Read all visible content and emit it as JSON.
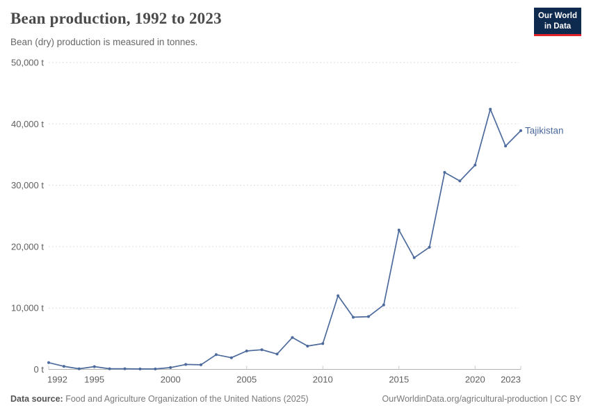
{
  "header": {
    "title": "Bean production, 1992 to 2023",
    "subtitle": "Bean (dry) production is measured in tonnes.",
    "logo": {
      "line1": "Our World",
      "line2": "in Data"
    }
  },
  "chart_data": {
    "type": "line",
    "title": "Bean production, 1992 to 2023",
    "unit": "t",
    "x": [
      1992,
      1993,
      1994,
      1995,
      1996,
      1997,
      1998,
      1999,
      2000,
      2001,
      2002,
      2003,
      2004,
      2005,
      2006,
      2007,
      2008,
      2009,
      2010,
      2011,
      2012,
      2013,
      2014,
      2015,
      2016,
      2017,
      2018,
      2019,
      2020,
      2021,
      2022,
      2023
    ],
    "series": [
      {
        "name": "Tajikistan",
        "color": "#4c6a9c",
        "values": [
          1100,
          500,
          100,
          450,
          100,
          100,
          70,
          70,
          300,
          800,
          750,
          2400,
          1900,
          3000,
          3200,
          2500,
          5200,
          3800,
          4200,
          12000,
          8500,
          8600,
          10500,
          22700,
          18200,
          19900,
          32100,
          30700,
          33300,
          42400,
          36400,
          38900
        ]
      }
    ],
    "ylim": [
      0,
      50000
    ],
    "yticks": [
      0,
      10000,
      20000,
      30000,
      40000,
      50000
    ],
    "xticks": [
      1992,
      1995,
      2000,
      2005,
      2010,
      2015,
      2020,
      2023
    ],
    "grid": "horizontal-dashed",
    "legend_position": "end-of-line-label"
  },
  "footer": {
    "source_label": "Data source:",
    "source_text": " Food and Agriculture Organization of the United Nations (2025)",
    "credit": "OurWorldinData.org/agricultural-production | CC BY"
  },
  "colors": {
    "line": "#4c6a9c",
    "grid": "#dddddd",
    "axis": "#b0b0b0",
    "tick": "#c8c8c8",
    "axis_label": "#5f5f5f",
    "logo_bg": "#0e2a4e",
    "logo_bar": "#e0232b"
  }
}
